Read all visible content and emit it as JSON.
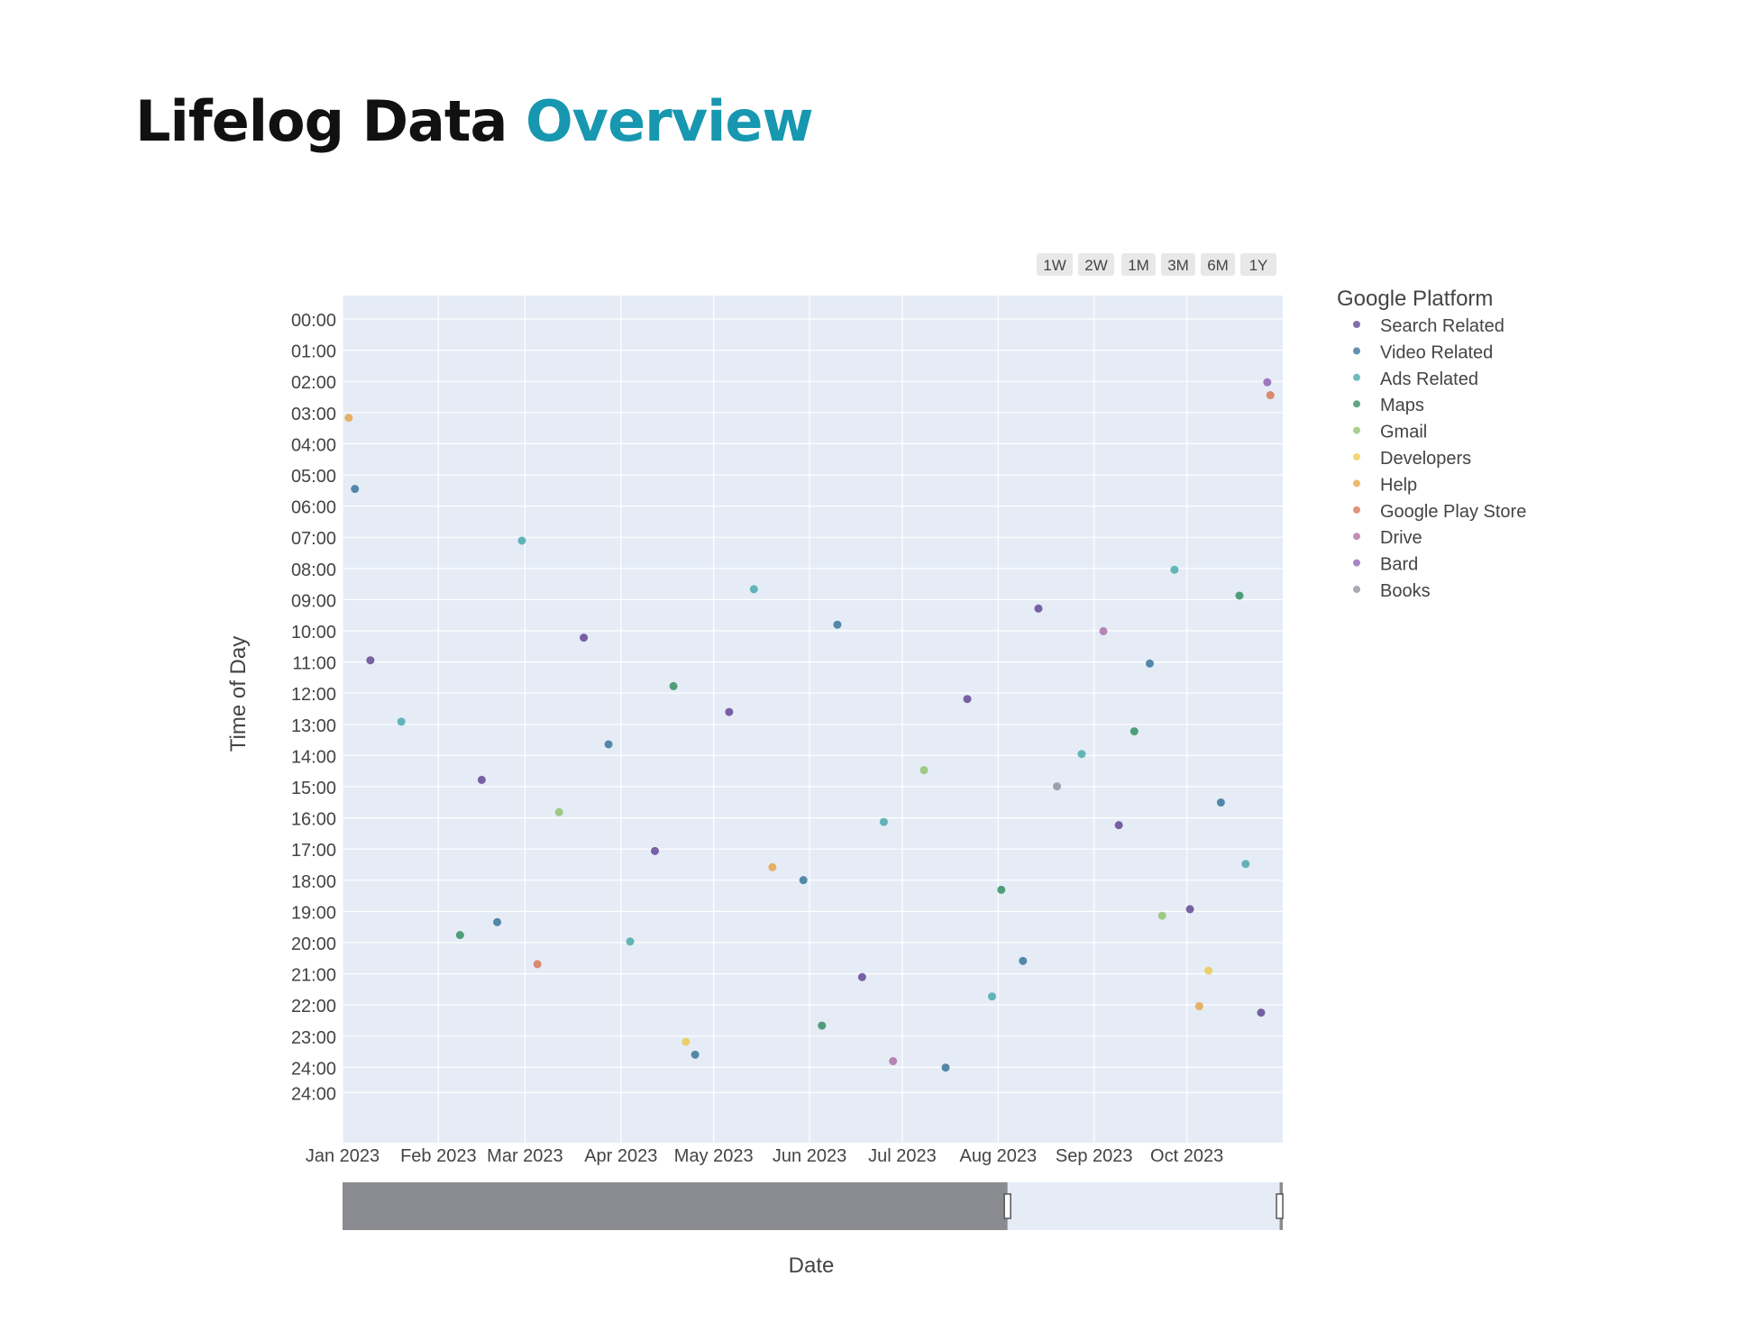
{
  "page": {
    "title_main": "Lifelog Data",
    "title_accent": "Overview"
  },
  "colors": {
    "title_accent": "#1797b0",
    "plot_bg": "#e5ecf6",
    "grid": "#ffffff",
    "slider_mask": "#8a8c91",
    "button_bg": "#e8e8e8"
  },
  "range_selector": {
    "buttons": [
      "1W",
      "2W",
      "1M",
      "3M",
      "6M",
      "1Y"
    ]
  },
  "range_slider": {
    "window_start": "2023-08-04",
    "window_end": "2023-10-31"
  },
  "chart_data": {
    "type": "scatter",
    "xlabel": "Date",
    "ylabel": "Time of Day",
    "xlim": [
      "2023-01-01",
      "2023-11-01"
    ],
    "ylim": [
      0,
      24
    ],
    "x_tick_labels": [
      "Jan 2023",
      "Feb 2023",
      "Mar 2023",
      "Apr 2023",
      "May 2023",
      "Jun 2023",
      "Jul 2023",
      "Aug 2023",
      "Sep 2023",
      "Oct 2023"
    ],
    "x_tick_dates": [
      "2023-01-01",
      "2023-02-01",
      "2023-03-01",
      "2023-04-01",
      "2023-05-01",
      "2023-06-01",
      "2023-07-01",
      "2023-08-01",
      "2023-09-01",
      "2023-10-01"
    ],
    "y_tick_labels": [
      "00:00",
      "01:00",
      "02:00",
      "03:00",
      "04:00",
      "05:00",
      "06:00",
      "07:00",
      "08:00",
      "09:00",
      "10:00",
      "11:00",
      "12:00",
      "13:00",
      "14:00",
      "15:00",
      "16:00",
      "17:00",
      "18:00",
      "19:00",
      "20:00",
      "21:00",
      "22:00",
      "23:00",
      "24:00",
      "24:00"
    ],
    "grid": true,
    "legend": {
      "title": "Google Platform",
      "position": "right"
    },
    "series": [
      {
        "name": "Search Related",
        "color": "#5b3d8f",
        "points": [
          [
            "2023-01-10",
            10.5
          ],
          [
            "2023-02-15",
            14.2
          ],
          [
            "2023-03-20",
            9.8
          ],
          [
            "2023-04-12",
            16.4
          ],
          [
            "2023-05-06",
            12.1
          ],
          [
            "2023-06-18",
            20.3
          ],
          [
            "2023-07-22",
            11.7
          ],
          [
            "2023-08-14",
            8.9
          ],
          [
            "2023-09-09",
            15.6
          ],
          [
            "2023-10-02",
            18.2
          ],
          [
            "2023-10-25",
            21.4
          ]
        ]
      },
      {
        "name": "Video Related",
        "color": "#2d6e96",
        "points": [
          [
            "2023-01-05",
            5.2
          ],
          [
            "2023-02-20",
            18.6
          ],
          [
            "2023-03-28",
            13.1
          ],
          [
            "2023-04-25",
            22.7
          ],
          [
            "2023-05-30",
            17.3
          ],
          [
            "2023-06-10",
            9.4
          ],
          [
            "2023-07-15",
            23.1
          ],
          [
            "2023-08-09",
            19.8
          ],
          [
            "2023-09-19",
            10.6
          ],
          [
            "2023-10-12",
            14.9
          ]
        ]
      },
      {
        "name": "Ads Related",
        "color": "#3fa6a8",
        "points": [
          [
            "2023-01-20",
            12.4
          ],
          [
            "2023-02-28",
            6.8
          ],
          [
            "2023-04-04",
            19.2
          ],
          [
            "2023-05-14",
            8.3
          ],
          [
            "2023-06-25",
            15.5
          ],
          [
            "2023-07-30",
            20.9
          ],
          [
            "2023-08-28",
            13.4
          ],
          [
            "2023-09-27",
            7.7
          ],
          [
            "2023-10-20",
            16.8
          ]
        ]
      },
      {
        "name": "Maps",
        "color": "#2a8a5a",
        "points": [
          [
            "2023-02-08",
            19.0
          ],
          [
            "2023-04-18",
            11.3
          ],
          [
            "2023-06-05",
            21.8
          ],
          [
            "2023-08-02",
            17.6
          ],
          [
            "2023-09-14",
            12.7
          ],
          [
            "2023-10-18",
            8.5
          ]
        ]
      },
      {
        "name": "Gmail",
        "color": "#8cc068",
        "points": [
          [
            "2023-03-12",
            15.2
          ],
          [
            "2023-07-08",
            13.9
          ],
          [
            "2023-09-23",
            18.4
          ]
        ]
      },
      {
        "name": "Developers",
        "color": "#ecc847",
        "points": [
          [
            "2023-04-22",
            22.3
          ],
          [
            "2023-10-08",
            20.1
          ]
        ]
      },
      {
        "name": "Help",
        "color": "#e6a33f",
        "points": [
          [
            "2023-01-03",
            3.0
          ],
          [
            "2023-05-20",
            16.9
          ],
          [
            "2023-10-05",
            21.2
          ]
        ]
      },
      {
        "name": "Google Play Store",
        "color": "#d9704e",
        "points": [
          [
            "2023-03-05",
            19.9
          ],
          [
            "2023-10-28",
            2.3
          ]
        ]
      },
      {
        "name": "Drive",
        "color": "#a96aa3",
        "points": [
          [
            "2023-06-28",
            22.9
          ],
          [
            "2023-09-04",
            9.6
          ]
        ]
      },
      {
        "name": "Bard",
        "color": "#8a5bb0",
        "points": [
          [
            "2023-10-27",
            1.9
          ]
        ]
      },
      {
        "name": "Books",
        "color": "#8a8d9a",
        "points": [
          [
            "2023-08-20",
            14.4
          ]
        ]
      }
    ]
  }
}
